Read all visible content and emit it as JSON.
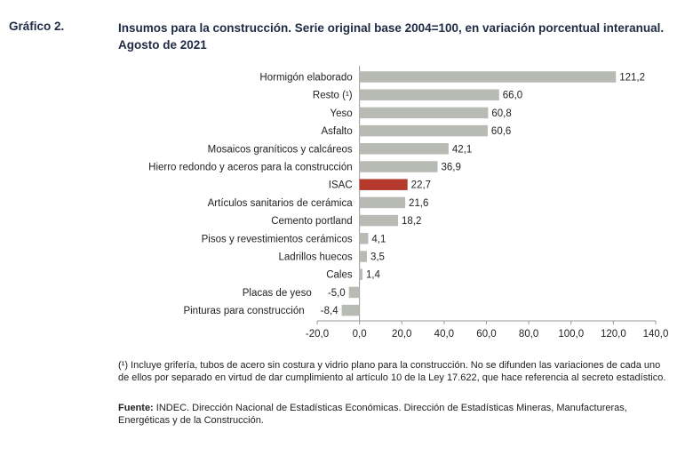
{
  "figure_label": "Gráfico 2.",
  "title_line1": "Insumos para la construcción. Serie original base 2004=100, en variación porcentual interanual.",
  "title_line2": "Agosto de 2021",
  "note": "(¹) Incluye grifería, tubos de acero sin costura y vidrio plano para la construcción. No se difunden las variaciones de cada uno de ellos por separado en virtud de dar cumplimiento al artículo 10 de la Ley 17.622, que hace referencia al secreto estadístico.",
  "source_label": "Fuente:",
  "source_text": " INDEC. Dirección Nacional de Estadísticas Económicas. Dirección de Estadísticas Mineras, Manufactureras, Energéticas y de la Construcción.",
  "colors": {
    "bar": "#b7bbb3",
    "highlight": "#b5392c",
    "axis": "#999999"
  },
  "chart_data": {
    "type": "bar",
    "orientation": "horizontal",
    "categories": [
      "Hormigón elaborado",
      "Resto (¹)",
      "Yeso",
      "Asfalto",
      "Mosaicos graníticos y calcáreos",
      "Hierro redondo y aceros para la construcción",
      "ISAC",
      "Artículos sanitarios de cerámica",
      "Cemento portland",
      "Pisos y revestimientos cerámicos",
      "Ladrillos huecos",
      "Cales",
      "Placas de yeso",
      "Pinturas para construcción"
    ],
    "values": [
      121.2,
      66.0,
      60.8,
      60.6,
      42.1,
      36.9,
      22.7,
      21.6,
      18.2,
      4.1,
      3.5,
      1.4,
      -5.0,
      -8.4
    ],
    "value_labels": [
      "121,2",
      "66,0",
      "60,8",
      "60,6",
      "42,1",
      "36,9",
      "22,7",
      "21,6",
      "18,2",
      "4,1",
      "3,5",
      "1,4",
      "-5,0",
      "-8,4"
    ],
    "highlight": "ISAC",
    "xlim": [
      -20,
      140
    ],
    "xticks": [
      -20,
      0,
      20,
      40,
      60,
      80,
      100,
      120,
      140
    ],
    "xtick_labels": [
      "-20,0",
      "0,0",
      "20,0",
      "40,0",
      "60,0",
      "80,0",
      "100,0",
      "120,0",
      "140,0"
    ],
    "grid": false,
    "legend": "none"
  }
}
